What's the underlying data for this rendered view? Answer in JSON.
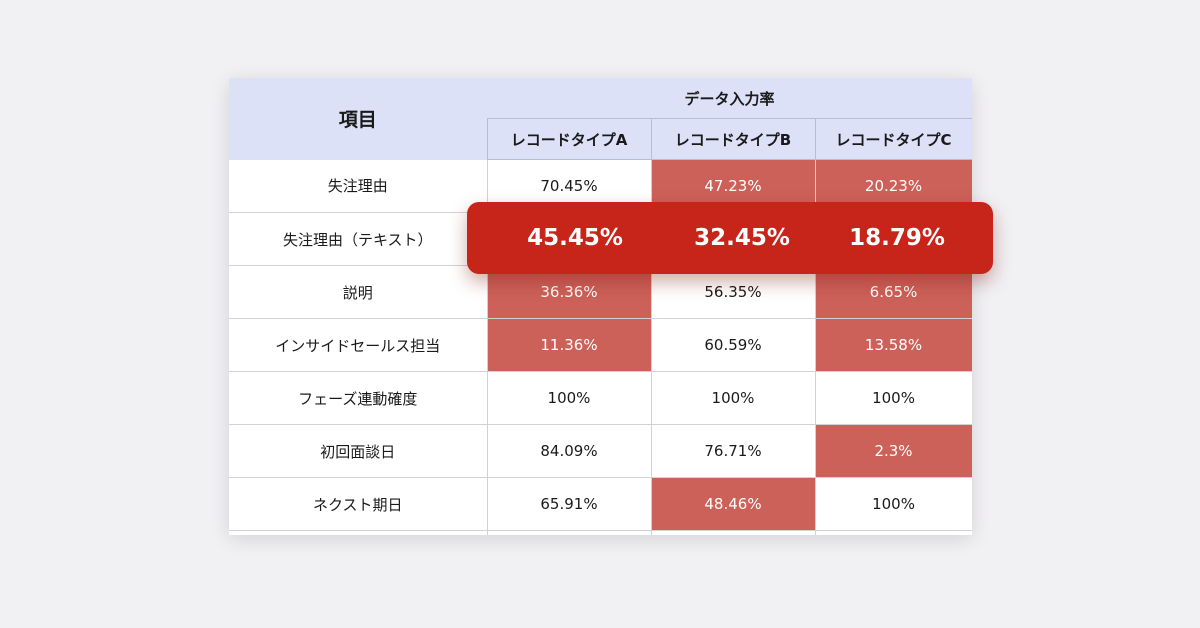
{
  "table": {
    "header": {
      "item_label": "項目",
      "group_label": "データ入力率",
      "columns": [
        "レコードタイプA",
        "レコードタイプB",
        "レコードタイプC"
      ]
    },
    "rows": [
      {
        "label": "失注理由",
        "values": [
          "70.45%",
          "47.23%",
          "20.23%"
        ],
        "highlight": [
          false,
          true,
          true
        ]
      },
      {
        "label": "失注理由（テキスト）",
        "values": [
          "45.45%",
          "32.45%",
          "18.79%"
        ],
        "highlight": [
          false,
          false,
          false
        ]
      },
      {
        "label": "説明",
        "values": [
          "36.36%",
          "56.35%",
          "6.65%"
        ],
        "highlight": [
          true,
          false,
          true
        ]
      },
      {
        "label": "インサイドセールス担当",
        "values": [
          "11.36%",
          "60.59%",
          "13.58%"
        ],
        "highlight": [
          true,
          false,
          true
        ]
      },
      {
        "label": "フェーズ連動確度",
        "values": [
          "100%",
          "100%",
          "100%"
        ],
        "highlight": [
          false,
          false,
          false
        ]
      },
      {
        "label": "初回面談日",
        "values": [
          "84.09%",
          "76.71%",
          "2.3%"
        ],
        "highlight": [
          false,
          false,
          true
        ]
      },
      {
        "label": "ネクスト期日",
        "values": [
          "65.91%",
          "48.46%",
          "100%"
        ],
        "highlight": [
          false,
          true,
          false
        ]
      }
    ]
  },
  "banner": {
    "values": [
      "45.45%",
      "32.45%",
      "18.79%"
    ]
  },
  "colors": {
    "header_bg": "#dde1f7",
    "low_rate_cell": "#cc6159",
    "banner": "#c7241a",
    "background": "#f1f0f3"
  }
}
